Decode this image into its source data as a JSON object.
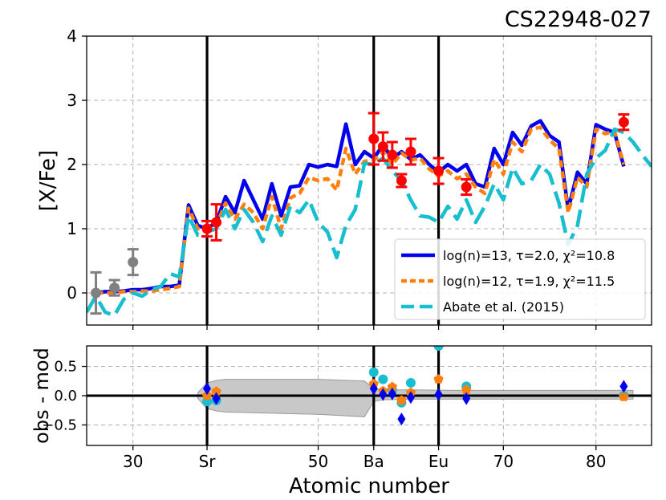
{
  "chart_data": [
    {
      "type": "line",
      "title": "CS22948-027",
      "ylabel": "[X/Fe]",
      "xlim": [
        25,
        86
      ],
      "ylim": [
        -0.5,
        4
      ],
      "yticks": [
        0,
        1,
        2,
        3,
        4
      ],
      "grid": true,
      "vlines": [
        38,
        56,
        63
      ],
      "legend": {
        "position": "lower-right",
        "entries": [
          "log(n)=13, τ=2.0, χ²=10.8",
          "log(n)=12, τ=1.9, χ²=11.5",
          "Abate et al. (2015)"
        ]
      },
      "series": [
        {
          "name": "log(n)=13, τ=2.0, χ²=10.8",
          "color": "#0000ee",
          "style": "solid",
          "x": [
            26,
            27,
            28,
            29,
            30,
            31,
            32,
            33,
            34,
            35,
            36,
            37,
            38,
            39,
            40,
            41,
            42,
            43,
            44,
            45,
            46,
            47,
            48,
            49,
            50,
            51,
            52,
            53,
            54,
            55,
            56,
            57,
            58,
            59,
            60,
            61,
            62,
            63,
            64,
            65,
            66,
            67,
            68,
            69,
            70,
            71,
            72,
            73,
            74,
            75,
            76,
            77,
            78,
            79,
            80,
            81,
            82,
            83
          ],
          "y": [
            0.0,
            0.02,
            0.02,
            0.03,
            0.05,
            0.05,
            0.07,
            0.1,
            0.1,
            0.12,
            1.37,
            1.05,
            1.0,
            1.1,
            1.5,
            1.25,
            1.75,
            1.45,
            1.15,
            1.7,
            1.2,
            1.65,
            1.67,
            2.0,
            1.96,
            2.0,
            1.97,
            2.63,
            2.0,
            2.2,
            2.1,
            2.3,
            2.1,
            2.2,
            2.08,
            2.15,
            2.0,
            1.88,
            2.0,
            1.9,
            2.0,
            1.7,
            1.65,
            2.25,
            2.0,
            2.5,
            2.3,
            2.6,
            2.68,
            2.45,
            2.35,
            1.3,
            1.88,
            1.7,
            2.62,
            2.55,
            2.5,
            1.97
          ]
        },
        {
          "name": "log(n)=12, τ=1.9, χ²=11.5",
          "color": "#ff7f0e",
          "style": "dotted",
          "x": [
            26,
            27,
            28,
            29,
            30,
            31,
            32,
            33,
            34,
            35,
            36,
            37,
            38,
            39,
            40,
            41,
            42,
            43,
            44,
            45,
            46,
            47,
            48,
            49,
            50,
            51,
            52,
            53,
            54,
            55,
            56,
            57,
            58,
            59,
            60,
            61,
            62,
            63,
            64,
            65,
            66,
            67,
            68,
            69,
            70,
            71,
            72,
            73,
            74,
            75,
            76,
            77,
            78,
            79,
            80,
            81,
            82,
            83
          ],
          "y": [
            0.0,
            0.0,
            0.0,
            0.02,
            0.02,
            0.03,
            0.03,
            0.05,
            0.07,
            0.1,
            1.32,
            1.0,
            1.0,
            1.05,
            1.4,
            1.15,
            1.38,
            1.25,
            1.0,
            1.5,
            1.0,
            1.48,
            1.55,
            1.8,
            1.75,
            1.78,
            1.6,
            2.25,
            1.85,
            2.05,
            2.07,
            2.2,
            2.0,
            2.18,
            2.07,
            2.1,
            1.93,
            1.82,
            1.9,
            1.78,
            1.85,
            1.65,
            1.55,
            2.08,
            1.85,
            2.35,
            2.2,
            2.55,
            2.58,
            2.38,
            2.25,
            1.25,
            1.8,
            1.65,
            2.55,
            2.48,
            2.52,
            2.0
          ]
        },
        {
          "name": "Abate et al. (2015)",
          "color": "#17becf",
          "style": "dashed",
          "x": [
            25,
            26,
            27,
            28,
            29,
            30,
            31,
            32,
            33,
            34,
            35,
            36,
            37,
            38,
            39,
            40,
            41,
            42,
            43,
            44,
            45,
            46,
            47,
            48,
            49,
            50,
            51,
            52,
            53,
            54,
            55,
            56,
            57,
            58,
            59,
            60,
            61,
            62,
            63,
            64,
            65,
            66,
            67,
            68,
            69,
            70,
            71,
            72,
            73,
            74,
            75,
            76,
            77,
            78,
            79,
            80,
            81,
            82,
            83,
            84,
            85,
            86
          ],
          "y": [
            -0.3,
            -0.05,
            -0.3,
            -0.35,
            -0.1,
            0.0,
            -0.05,
            0.05,
            0.1,
            0.3,
            0.25,
            1.2,
            0.9,
            0.95,
            1.0,
            1.3,
            1.0,
            1.3,
            1.1,
            0.8,
            1.2,
            0.9,
            1.35,
            1.25,
            1.45,
            1.1,
            0.95,
            0.55,
            1.05,
            1.3,
            2.02,
            2.0,
            2.1,
            1.9,
            1.75,
            1.45,
            1.2,
            1.18,
            1.1,
            1.35,
            1.15,
            1.45,
            1.1,
            1.35,
            1.7,
            1.45,
            1.95,
            1.7,
            1.75,
            2.0,
            1.85,
            1.4,
            0.75,
            1.05,
            1.85,
            2.1,
            2.22,
            2.55,
            2.5,
            2.35,
            2.15,
            1.97
          ]
        },
        {
          "name": "obs (upper limits)",
          "color": "#808080",
          "style": "points",
          "x": [
            26,
            28,
            30
          ],
          "y": [
            0.0,
            0.08,
            0.48
          ],
          "err": [
            0.32,
            0.12,
            0.2
          ]
        },
        {
          "name": "obs",
          "color": "#ff0000",
          "style": "points",
          "x": [
            38,
            39,
            56,
            57,
            58,
            59,
            60,
            63,
            66,
            83
          ],
          "y": [
            1.0,
            1.1,
            2.4,
            2.28,
            2.15,
            1.75,
            2.2,
            1.9,
            1.65,
            2.66
          ],
          "err": [
            0.12,
            0.28,
            0.4,
            0.22,
            0.2,
            0.1,
            0.2,
            0.2,
            0.12,
            0.12
          ]
        }
      ]
    },
    {
      "type": "scatter",
      "ylabel": "obs - mod",
      "xlabel": "Atomic number",
      "xlim": [
        25,
        86
      ],
      "ylim": [
        -0.85,
        0.85
      ],
      "yticks": [
        -0.5,
        0.0,
        0.5
      ],
      "ytick_labels": [
        "−0.5",
        "0.0",
        "0.5"
      ],
      "xticks": [
        30,
        38,
        50,
        56,
        63,
        70,
        80
      ],
      "xtick_labels": [
        "30",
        "Sr",
        "50",
        "Ba",
        "Eu",
        "70",
        "80"
      ],
      "grid": true,
      "vlines": [
        38,
        56,
        63
      ],
      "band": {
        "x": [
          37,
          38,
          39,
          40,
          45,
          50,
          55,
          56,
          57,
          60,
          65,
          70,
          75,
          80,
          84
        ],
        "upper": [
          0.05,
          0.22,
          0.26,
          0.28,
          0.28,
          0.28,
          0.25,
          0.12,
          0.1,
          0.1,
          0.09,
          0.09,
          0.09,
          0.09,
          0.09
        ],
        "lower": [
          -0.05,
          -0.22,
          -0.26,
          -0.28,
          -0.3,
          -0.32,
          -0.36,
          -0.1,
          -0.07,
          -0.06,
          -0.06,
          -0.06,
          -0.06,
          -0.06,
          -0.06
        ]
      },
      "series": [
        {
          "name": "log(n)=13, τ=2.0, χ²=10.8",
          "color": "#0000ee",
          "marker": "diamond",
          "x": [
            38,
            39,
            56,
            57,
            58,
            59,
            60,
            63,
            66,
            83
          ],
          "y": [
            0.12,
            -0.05,
            0.12,
            0.02,
            0.03,
            -0.4,
            -0.03,
            0.02,
            -0.05,
            0.16
          ]
        },
        {
          "name": "log(n)=12, τ=1.9, χ²=11.5",
          "color": "#ff7f0e",
          "marker": "pentagon",
          "x": [
            38,
            39,
            56,
            57,
            58,
            59,
            60,
            63,
            66,
            83
          ],
          "y": [
            0.0,
            0.07,
            0.2,
            0.08,
            0.15,
            -0.08,
            0.05,
            0.28,
            0.1,
            -0.02
          ]
        },
        {
          "name": "Abate et al. (2015)",
          "color": "#17becf",
          "marker": "circle",
          "x": [
            38,
            39,
            56,
            57,
            58,
            59,
            60,
            63,
            66,
            83
          ],
          "y": [
            -0.1,
            -0.08,
            0.4,
            0.28,
            0.1,
            -0.12,
            0.22,
            0.85,
            0.16,
            0.0
          ]
        }
      ]
    }
  ]
}
